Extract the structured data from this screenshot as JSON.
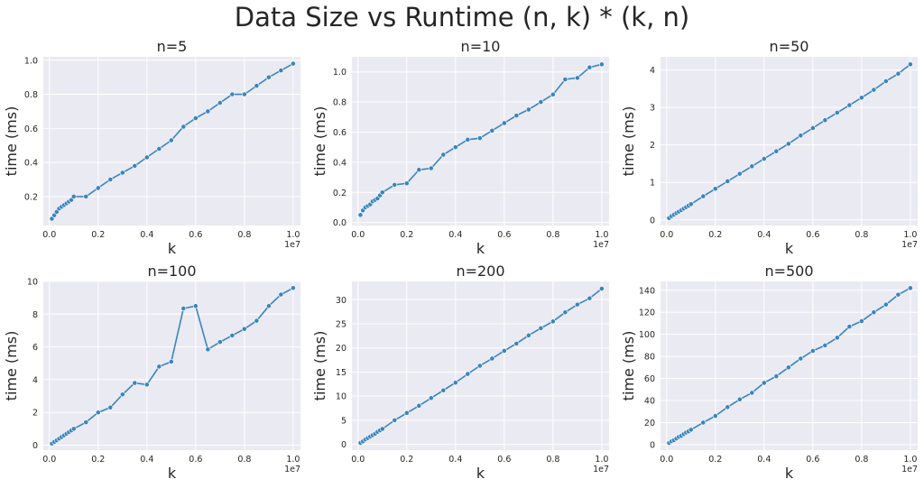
{
  "figure": {
    "title": "Data Size vs Runtime (n, k) * (k, n)"
  },
  "chart_data": [
    {
      "type": "line",
      "title": "n=5",
      "xlabel": "k",
      "ylabel": "time (ms)",
      "x_offset_label": "1e7",
      "xlim": [
        -250000,
        10300000
      ],
      "ylim": [
        0.03,
        1.02
      ],
      "xticks": [
        0,
        2000000,
        4000000,
        6000000,
        8000000,
        10000000
      ],
      "xtick_labels": [
        "0.0",
        "0.2",
        "0.4",
        "0.6",
        "0.8",
        "1.0"
      ],
      "yticks": [
        0.2,
        0.4,
        0.6,
        0.8,
        1.0
      ],
      "ytick_labels": [
        "0.2",
        "0.4",
        "0.6",
        "0.8",
        "1.0"
      ],
      "grid": true,
      "color": "#3a84bf",
      "x": [
        100000,
        200000,
        300000,
        400000,
        500000,
        600000,
        700000,
        800000,
        900000,
        1000000,
        1500000,
        2000000,
        2500000,
        3000000,
        3500000,
        4000000,
        4500000,
        5000000,
        5500000,
        6000000,
        6500000,
        7000000,
        7500000,
        8000000,
        8500000,
        9000000,
        9500000,
        10000000
      ],
      "values": [
        0.07,
        0.09,
        0.11,
        0.13,
        0.14,
        0.15,
        0.16,
        0.17,
        0.18,
        0.2,
        0.2,
        0.25,
        0.3,
        0.34,
        0.38,
        0.43,
        0.48,
        0.53,
        0.61,
        0.66,
        0.7,
        0.75,
        0.8,
        0.8,
        0.85,
        0.9,
        0.94,
        0.98
      ]
    },
    {
      "type": "line",
      "title": "n=10",
      "xlabel": "k",
      "ylabel": "time (ms)",
      "x_offset_label": "1e7",
      "xlim": [
        -250000,
        10300000
      ],
      "ylim": [
        -0.02,
        1.1
      ],
      "xticks": [
        0,
        2000000,
        4000000,
        6000000,
        8000000,
        10000000
      ],
      "xtick_labels": [
        "0.0",
        "0.2",
        "0.4",
        "0.6",
        "0.8",
        "1.0"
      ],
      "yticks": [
        0.0,
        0.2,
        0.4,
        0.6,
        0.8,
        1.0
      ],
      "ytick_labels": [
        "0.0",
        "0.2",
        "0.4",
        "0.6",
        "0.8",
        "1.0"
      ],
      "grid": true,
      "color": "#3a84bf",
      "x": [
        100000,
        200000,
        300000,
        400000,
        500000,
        600000,
        700000,
        800000,
        900000,
        1000000,
        1500000,
        2000000,
        2500000,
        3000000,
        3500000,
        4000000,
        4500000,
        5000000,
        5500000,
        6000000,
        6500000,
        7000000,
        7500000,
        8000000,
        8500000,
        9000000,
        9500000,
        10000000
      ],
      "values": [
        0.05,
        0.08,
        0.1,
        0.11,
        0.12,
        0.14,
        0.15,
        0.16,
        0.18,
        0.2,
        0.25,
        0.26,
        0.35,
        0.36,
        0.45,
        0.5,
        0.55,
        0.56,
        0.61,
        0.66,
        0.71,
        0.75,
        0.8,
        0.85,
        0.95,
        0.96,
        1.03,
        1.05
      ]
    },
    {
      "type": "line",
      "title": "n=50",
      "xlabel": "k",
      "ylabel": "time (ms)",
      "x_offset_label": "1e7",
      "xlim": [
        -250000,
        10300000
      ],
      "ylim": [
        -0.15,
        4.35
      ],
      "xticks": [
        0,
        2000000,
        4000000,
        6000000,
        8000000,
        10000000
      ],
      "xtick_labels": [
        "0.0",
        "0.2",
        "0.4",
        "0.6",
        "0.8",
        "1.0"
      ],
      "yticks": [
        0,
        1,
        2,
        3,
        4
      ],
      "ytick_labels": [
        "0",
        "1",
        "2",
        "3",
        "4"
      ],
      "grid": true,
      "color": "#3a84bf",
      "x": [
        100000,
        200000,
        300000,
        400000,
        500000,
        600000,
        700000,
        800000,
        900000,
        1000000,
        1500000,
        2000000,
        2500000,
        3000000,
        3500000,
        4000000,
        4500000,
        5000000,
        5500000,
        6000000,
        6500000,
        7000000,
        7500000,
        8000000,
        8500000,
        9000000,
        9500000,
        10000000
      ],
      "values": [
        0.05,
        0.1,
        0.14,
        0.18,
        0.22,
        0.26,
        0.3,
        0.34,
        0.38,
        0.42,
        0.63,
        0.83,
        1.03,
        1.23,
        1.43,
        1.63,
        1.83,
        2.03,
        2.25,
        2.45,
        2.66,
        2.86,
        3.06,
        3.26,
        3.47,
        3.7,
        3.9,
        4.15
      ]
    },
    {
      "type": "line",
      "title": "n=100",
      "xlabel": "k",
      "ylabel": "time (ms)",
      "x_offset_label": "1e7",
      "xlim": [
        -250000,
        10300000
      ],
      "ylim": [
        -0.3,
        10.0
      ],
      "xticks": [
        0,
        2000000,
        4000000,
        6000000,
        8000000,
        10000000
      ],
      "xtick_labels": [
        "0.0",
        "0.2",
        "0.4",
        "0.6",
        "0.8",
        "1.0"
      ],
      "yticks": [
        0,
        2,
        4,
        6,
        8,
        10
      ],
      "ytick_labels": [
        "0",
        "2",
        "4",
        "6",
        "8",
        "10"
      ],
      "grid": true,
      "color": "#3a84bf",
      "x": [
        100000,
        200000,
        300000,
        400000,
        500000,
        600000,
        700000,
        800000,
        900000,
        1000000,
        1500000,
        2000000,
        2500000,
        3000000,
        3500000,
        4000000,
        4500000,
        5000000,
        5500000,
        6000000,
        6500000,
        7000000,
        7500000,
        8000000,
        8500000,
        9000000,
        9500000,
        10000000
      ],
      "values": [
        0.1,
        0.2,
        0.3,
        0.4,
        0.5,
        0.6,
        0.7,
        0.8,
        0.9,
        1.0,
        1.4,
        2.0,
        2.3,
        3.1,
        3.8,
        3.7,
        4.8,
        5.1,
        8.35,
        8.5,
        5.85,
        6.3,
        6.7,
        7.1,
        7.6,
        8.5,
        9.2,
        9.6
      ]
    },
    {
      "type": "line",
      "title": "n=200",
      "xlabel": "k",
      "ylabel": "time (ms)",
      "x_offset_label": "1e7",
      "xlim": [
        -250000,
        10300000
      ],
      "ylim": [
        -1.2,
        33.8
      ],
      "xticks": [
        0,
        2000000,
        4000000,
        6000000,
        8000000,
        10000000
      ],
      "xtick_labels": [
        "0.0",
        "0.2",
        "0.4",
        "0.6",
        "0.8",
        "1.0"
      ],
      "yticks": [
        0,
        5,
        10,
        15,
        20,
        25,
        30
      ],
      "ytick_labels": [
        "0",
        "5",
        "10",
        "15",
        "20",
        "25",
        "30"
      ],
      "grid": true,
      "color": "#3a84bf",
      "x": [
        100000,
        200000,
        300000,
        400000,
        500000,
        600000,
        700000,
        800000,
        900000,
        1000000,
        1500000,
        2000000,
        2500000,
        3000000,
        3500000,
        4000000,
        4500000,
        5000000,
        5500000,
        6000000,
        6500000,
        7000000,
        7500000,
        8000000,
        8500000,
        9000000,
        9500000,
        10000000
      ],
      "values": [
        0.3,
        0.6,
        1.0,
        1.3,
        1.6,
        1.9,
        2.2,
        2.6,
        2.9,
        3.2,
        5.0,
        6.5,
        8.0,
        9.6,
        11.2,
        12.8,
        14.6,
        16.3,
        17.8,
        19.4,
        20.9,
        22.6,
        24.1,
        25.5,
        27.4,
        29.0,
        30.3,
        32.3
      ]
    },
    {
      "type": "line",
      "title": "n=500",
      "xlabel": "k",
      "ylabel": "time (ms)",
      "x_offset_label": "1e7",
      "xlim": [
        -250000,
        10300000
      ],
      "ylim": [
        -5,
        148
      ],
      "xticks": [
        0,
        2000000,
        4000000,
        6000000,
        8000000,
        10000000
      ],
      "xtick_labels": [
        "0.0",
        "0.2",
        "0.4",
        "0.6",
        "0.8",
        "1.0"
      ],
      "yticks": [
        0,
        20,
        40,
        60,
        80,
        100,
        120,
        140
      ],
      "ytick_labels": [
        "0",
        "20",
        "40",
        "60",
        "80",
        "100",
        "120",
        "140"
      ],
      "grid": true,
      "color": "#3a84bf",
      "x": [
        100000,
        200000,
        300000,
        400000,
        500000,
        600000,
        700000,
        800000,
        900000,
        1000000,
        1500000,
        2000000,
        2500000,
        3000000,
        3500000,
        4000000,
        4500000,
        5000000,
        5500000,
        6000000,
        6500000,
        7000000,
        7500000,
        8000000,
        8500000,
        9000000,
        9500000,
        10000000
      ],
      "values": [
        1.5,
        3,
        4,
        5.5,
        7,
        8,
        9.5,
        11,
        12,
        13.5,
        20,
        26,
        34,
        41,
        47,
        56,
        62,
        70,
        78,
        85,
        90,
        97,
        107,
        112,
        120,
        127,
        136,
        142
      ]
    }
  ]
}
